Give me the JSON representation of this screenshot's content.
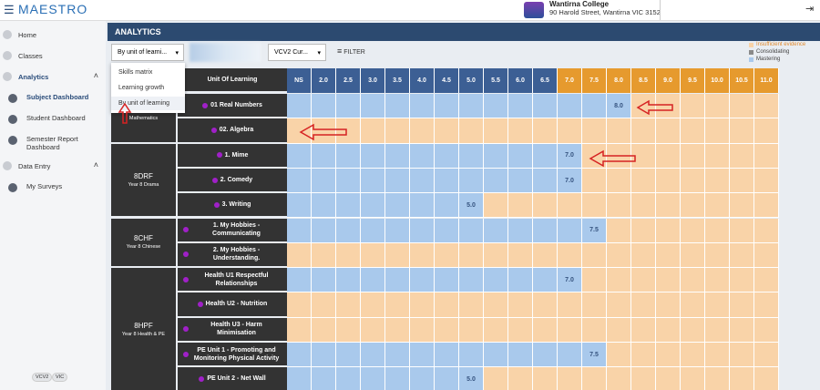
{
  "header": {
    "logo": "MAESTRO",
    "school_name": "Wantirna College",
    "school_address": "90 Harold Street, Wantirna VIC 3152"
  },
  "sidebar": {
    "items": [
      {
        "label": "Home"
      },
      {
        "label": "Classes"
      },
      {
        "label": "Analytics",
        "children": [
          "Subject Dashboard",
          "Student Dashboard",
          "Semester Report Dashboard"
        ]
      },
      {
        "label": "Data Entry",
        "children": [
          "My Surveys"
        ]
      }
    ],
    "badges": [
      "VCV2",
      "VIC"
    ]
  },
  "panel": {
    "title": "ANALYTICS",
    "view_select": "By unit of learni...",
    "curriculum_select": "VCV2 Cur...",
    "filter": "FILTER",
    "view_options": [
      "Skills matrix",
      "Learning growth",
      "By unit of learning"
    ],
    "legend": [
      {
        "label": "Insufficient evidence",
        "color": "#f9d3a8"
      },
      {
        "label": "Consolidating",
        "color": "#8a8a8a"
      },
      {
        "label": "Mastering",
        "color": "#a9c9ec"
      }
    ]
  },
  "table": {
    "unit_header": "Unit Of Learning",
    "levels": [
      "NS",
      "2.0",
      "2.5",
      "3.0",
      "3.5",
      "4.0",
      "4.5",
      "5.0",
      "5.5",
      "6.0",
      "6.5",
      "7.0",
      "7.5",
      "8.0",
      "8.5",
      "9.0",
      "9.5",
      "10.0",
      "10.5",
      "11.0"
    ],
    "groups": [
      {
        "subtitle": "Mathematics",
        "rows": [
          {
            "unit": "01 Real Numbers",
            "level": "8.0"
          },
          {
            "unit": "02. Algebra",
            "level": null
          }
        ]
      },
      {
        "code": "8DRF",
        "subtitle": "Year 8 Drama",
        "rows": [
          {
            "unit": "1. Mime",
            "level": "7.0"
          },
          {
            "unit": "2. Comedy",
            "level": "7.0"
          },
          {
            "unit": "3. Writing",
            "level": "5.0"
          }
        ]
      },
      {
        "code": "8CHF",
        "subtitle": "Year 8 Chinese",
        "rows": [
          {
            "unit": "1. My Hobbies - Communicating",
            "level": "7.5"
          },
          {
            "unit": "2. My Hobbies - Understanding.",
            "level": null
          }
        ]
      },
      {
        "code": "8HPF",
        "subtitle": "Year 8 Health & PE",
        "rows": [
          {
            "unit": "Health U1 Respectful Relationships",
            "level": "7.0"
          },
          {
            "unit": "Health U2 - Nutrition",
            "level": null
          },
          {
            "unit": "Health U3 - Harm Minimisation",
            "level": null
          },
          {
            "unit": "PE Unit 1 - Promoting and Monitoring Physical Activity",
            "level": "7.5"
          },
          {
            "unit": "PE Unit 2 - Net Wall",
            "level": "5.0"
          }
        ]
      }
    ]
  }
}
